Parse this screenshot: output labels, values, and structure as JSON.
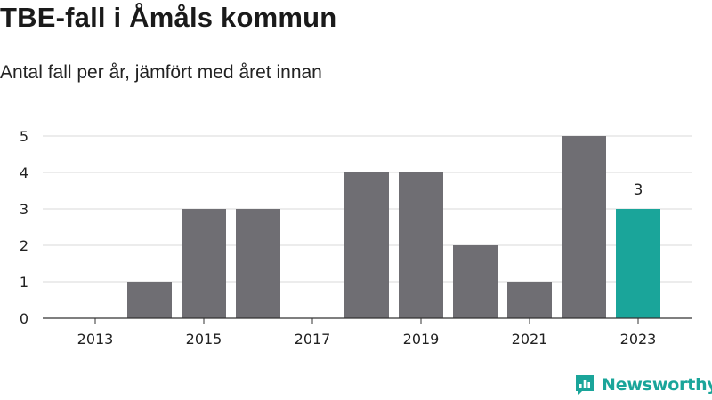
{
  "header": {
    "title": "TBE-fall i Åmåls kommun",
    "subtitle": "Antal fall per år, jämfört med året innan"
  },
  "brand": {
    "name": "Newsworthy",
    "icon": "newsworthy-logo-icon"
  },
  "colors": {
    "bar": "#6f6e73",
    "highlight": "#1aa59a",
    "grid": "#d9d9d9",
    "axis": "#333333",
    "text": "#222222"
  },
  "chart_data": {
    "type": "bar",
    "categories": [
      "2013",
      "2014",
      "2015",
      "2016",
      "2017",
      "2018",
      "2019",
      "2020",
      "2021",
      "2022",
      "2023"
    ],
    "values": [
      0,
      1,
      3,
      3,
      0,
      4,
      4,
      2,
      1,
      5,
      3
    ],
    "x_tick_labels": [
      "2013",
      "2015",
      "2017",
      "2019",
      "2021",
      "2023"
    ],
    "y_ticks": [
      0,
      1,
      2,
      3,
      4,
      5
    ],
    "ylim": [
      0,
      5
    ],
    "highlight_category": "2023",
    "highlight_label": "3",
    "grid": true,
    "legend": "none"
  }
}
